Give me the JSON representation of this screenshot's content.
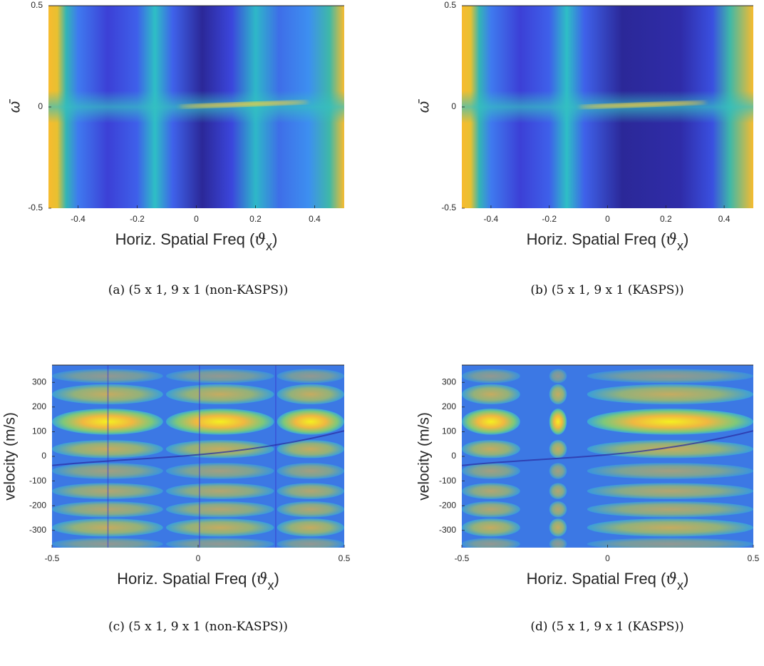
{
  "chart_data": [
    {
      "type": "heatmap",
      "xlim": [
        -0.5,
        0.5
      ],
      "xticks": [
        -0.4,
        -0.2,
        0,
        0.2,
        0.4
      ],
      "ylim": [
        -0.5,
        0.5
      ],
      "yticks": [
        -0.5,
        0,
        0.5
      ],
      "xlabel": [
        "Horiz. Spatial Freq (",
        "ϑ",
        "x",
        ")"
      ],
      "ylabel": "ω̄",
      "caption": "(a) (5 x 1, 9 x 1 (non-KASPS))"
    },
    {
      "type": "heatmap",
      "xlim": [
        -0.5,
        0.5
      ],
      "xticks": [
        -0.4,
        -0.2,
        0,
        0.2,
        0.4
      ],
      "ylim": [
        -0.5,
        0.5
      ],
      "yticks": [
        -0.5,
        0,
        0.5
      ],
      "xlabel": [
        "Horiz. Spatial Freq (",
        "ϑ",
        "x",
        ")"
      ],
      "ylabel": "ω̄",
      "caption": "(b) (5 x 1, 9 x 1 (KASPS))"
    },
    {
      "type": "heatmap",
      "xlim": [
        -0.5,
        0.5
      ],
      "xticks": [
        -0.5,
        0,
        0.5
      ],
      "ylim": [
        -370,
        370
      ],
      "yticks": [
        -300,
        -200,
        -100,
        0,
        100,
        200,
        300
      ],
      "xlabel": [
        "Horiz. Spatial Freq (",
        "ϑ",
        "x",
        ")"
      ],
      "ylabel": "velocity (m/s)",
      "caption": "(c) (5 x 1, 9 x 1 (non-KASPS))"
    },
    {
      "type": "heatmap",
      "xlim": [
        -0.5,
        0.5
      ],
      "xticks": [
        -0.5,
        0,
        0.5
      ],
      "ylim": [
        -370,
        370
      ],
      "yticks": [
        -300,
        -200,
        -100,
        0,
        100,
        200,
        300
      ],
      "xlabel": [
        "Horiz. Spatial Freq (",
        "ϑ",
        "x",
        ")"
      ],
      "ylabel": "velocity (m/s)",
      "caption": "(d) (5 x 1, 9 x 1 (KASPS))"
    }
  ]
}
